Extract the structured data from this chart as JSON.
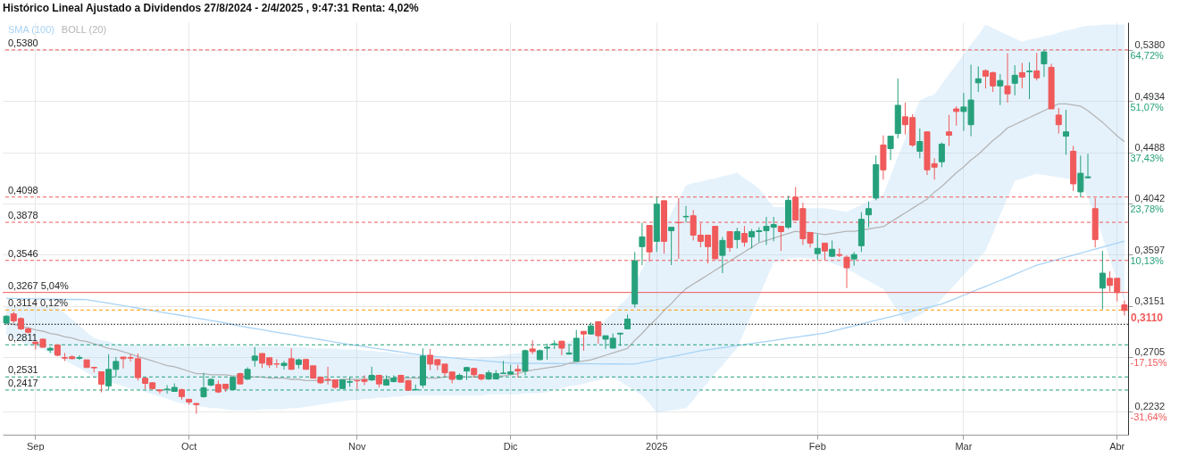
{
  "chart_data": {
    "type": "candlestick",
    "title": "Histórico Lineal Ajustado a Dividendos 27/8/2024 - 2/4/2025 , 9:47:31 Renta: 4,02%",
    "categories": [
      null,
      null,
      null,
      null,
      "Sep",
      null,
      null,
      null,
      null,
      null,
      null,
      null,
      null,
      null,
      null,
      null,
      null,
      null,
      null,
      null,
      null,
      null,
      null,
      null,
      null,
      "Oct",
      null,
      null,
      null,
      null,
      null,
      null,
      null,
      null,
      null,
      null,
      null,
      null,
      null,
      null,
      null,
      null,
      null,
      null,
      null,
      null,
      null,
      null,
      "Nov",
      null,
      null,
      null,
      null,
      null,
      null,
      null,
      null,
      null,
      null,
      null,
      null,
      null,
      null,
      null,
      null,
      null,
      null,
      null,
      null,
      "Dic",
      null,
      null,
      null,
      null,
      null,
      null,
      null,
      null,
      null,
      null,
      null,
      null,
      null,
      null,
      null,
      null,
      null,
      null,
      null,
      "2025",
      null,
      null,
      null,
      null,
      null,
      null,
      null,
      null,
      null,
      null,
      null,
      null,
      null,
      null,
      null,
      null,
      null,
      null,
      null,
      null,
      null,
      "Feb",
      null,
      null,
      null,
      null,
      null,
      null,
      null,
      null,
      null,
      null,
      null,
      null,
      null,
      null,
      null,
      null,
      null,
      null,
      null,
      "Mar",
      null,
      null,
      null,
      null,
      null,
      null,
      null,
      null,
      null,
      null,
      null,
      null,
      null,
      null,
      null,
      null,
      null,
      null,
      null,
      null,
      "Abr",
      null
    ],
    "ohlc": [
      [
        0.3,
        0.307,
        0.299,
        0.306
      ],
      [
        0.308,
        0.31,
        0.3,
        0.302
      ],
      [
        0.304,
        0.305,
        0.294,
        0.295
      ],
      [
        0.295,
        0.296,
        0.291,
        0.292
      ],
      [
        0.2835,
        0.284,
        0.277,
        0.282
      ],
      [
        0.286,
        0.2865,
        0.2786,
        0.279
      ],
      [
        0.2765,
        0.2795,
        0.274,
        0.278
      ],
      [
        0.281,
        0.281,
        0.271,
        0.272
      ],
      [
        0.27,
        0.274,
        0.267,
        0.2695
      ],
      [
        0.2706,
        0.272,
        0.2685,
        0.269
      ],
      [
        0.2693,
        0.272,
        0.268,
        0.27
      ],
      [
        0.268,
        0.268,
        0.2613,
        0.2613
      ],
      [
        0.2615,
        0.262,
        0.257,
        0.261
      ],
      [
        0.2576,
        0.2576,
        0.2397,
        0.2468
      ],
      [
        0.2453,
        0.2728,
        0.242,
        0.2597
      ],
      [
        0.2597,
        0.2705,
        0.2528,
        0.2666
      ],
      [
        0.2704,
        0.2705,
        0.2605,
        0.269
      ],
      [
        0.27,
        0.2728,
        0.2665,
        0.2695
      ],
      [
        0.269,
        0.2735,
        0.25,
        0.2525
      ],
      [
        0.252,
        0.2525,
        0.2425,
        0.2475
      ],
      [
        0.248,
        0.2485,
        0.242,
        0.243
      ],
      [
        0.2418,
        0.242,
        0.2385,
        0.241
      ],
      [
        0.242,
        0.246,
        0.2385,
        0.2425
      ],
      [
        0.2405,
        0.2475,
        0.2405,
        0.244
      ],
      [
        0.242,
        0.243,
        0.2333,
        0.236
      ],
      [
        0.2336,
        0.234,
        0.229,
        0.2313
      ],
      [
        0.23,
        0.2303,
        0.221,
        0.229
      ],
      [
        0.2359,
        0.2566,
        0.2351,
        0.2436
      ],
      [
        0.246,
        0.252,
        0.245,
        0.251
      ],
      [
        0.2465,
        0.25,
        0.239,
        0.24
      ],
      [
        0.2468,
        0.247,
        0.24,
        0.243
      ],
      [
        0.242,
        0.2528,
        0.2415,
        0.2528
      ],
      [
        0.256,
        0.2568,
        0.2465,
        0.247
      ],
      [
        0.2512,
        0.2615,
        0.2505,
        0.2597
      ],
      [
        0.2675,
        0.279,
        0.262,
        0.2713
      ],
      [
        0.2735,
        0.2735,
        0.261,
        0.2651
      ],
      [
        0.2698,
        0.2698,
        0.261,
        0.2636
      ],
      [
        0.2645,
        0.2685,
        0.261,
        0.2643
      ],
      [
        0.263,
        0.267,
        0.2595,
        0.265
      ],
      [
        0.269,
        0.278,
        0.2597,
        0.2597
      ],
      [
        0.264,
        0.269,
        0.2605,
        0.268
      ],
      [
        0.2683,
        0.269,
        0.2597,
        0.2597
      ],
      [
        0.2628,
        0.2628,
        0.252,
        0.252
      ],
      [
        0.2528,
        0.253,
        0.247,
        0.248
      ],
      [
        0.251,
        0.262,
        0.2465,
        0.2505
      ],
      [
        0.2505,
        0.2505,
        0.2428,
        0.244
      ],
      [
        0.243,
        0.2505,
        0.243,
        0.2505
      ],
      [
        0.2485,
        0.253,
        0.2445,
        0.249
      ],
      [
        0.25,
        0.2502,
        0.2425,
        0.2497
      ],
      [
        0.2508,
        0.2545,
        0.246,
        0.2492
      ],
      [
        0.2505,
        0.262,
        0.2495,
        0.2545
      ],
      [
        0.2545,
        0.255,
        0.244,
        0.247
      ],
      [
        0.246,
        0.2545,
        0.2455,
        0.2505
      ],
      [
        0.249,
        0.2545,
        0.2485,
        0.252
      ],
      [
        0.2545,
        0.255,
        0.2485,
        0.2485
      ],
      [
        0.25,
        0.25,
        0.2415,
        0.2415
      ],
      [
        0.2418,
        0.2465,
        0.2415,
        0.2422
      ],
      [
        0.246,
        0.278,
        0.2435,
        0.2713
      ],
      [
        0.272,
        0.2775,
        0.259,
        0.2643
      ],
      [
        0.2682,
        0.2682,
        0.259,
        0.2636
      ],
      [
        0.2643,
        0.2643,
        0.2535,
        0.2567
      ],
      [
        0.2574,
        0.2574,
        0.2475,
        0.251
      ],
      [
        0.251,
        0.2562,
        0.2505,
        0.2545
      ],
      [
        0.2582,
        0.262,
        0.2505,
        0.2613
      ],
      [
        0.2605,
        0.261,
        0.2525,
        0.255
      ],
      [
        0.255,
        0.2555,
        0.25,
        0.2513
      ],
      [
        0.2513,
        0.259,
        0.2505,
        0.2567
      ],
      [
        0.2513,
        0.259,
        0.251,
        0.256
      ],
      [
        0.256,
        0.267,
        0.256,
        0.2565
      ],
      [
        0.2556,
        0.2637,
        0.255,
        0.2575
      ],
      [
        0.2597,
        0.2637,
        0.2525,
        0.2582
      ],
      [
        0.2582,
        0.277,
        0.2545,
        0.276
      ],
      [
        0.2775,
        0.285,
        0.273,
        0.2752
      ],
      [
        0.2682,
        0.277,
        0.2675,
        0.276
      ],
      [
        0.2782,
        0.282,
        0.2682,
        0.279
      ],
      [
        0.2813,
        0.285,
        0.2775,
        0.282
      ],
      [
        0.2843,
        0.2845,
        0.272,
        0.2782
      ],
      [
        0.273,
        0.2805,
        0.2725,
        0.274
      ],
      [
        0.2667,
        0.294,
        0.2667,
        0.2868
      ],
      [
        0.2928,
        0.293,
        0.276,
        0.2905
      ],
      [
        0.2905,
        0.3005,
        0.29,
        0.2975
      ],
      [
        0.3012,
        0.3012,
        0.282,
        0.289
      ],
      [
        0.286,
        0.289,
        0.2775,
        0.289
      ],
      [
        0.2782,
        0.291,
        0.2782,
        0.2868
      ],
      [
        0.2905,
        0.2915,
        0.28,
        0.2912
      ],
      [
        0.295,
        0.3075,
        0.2945,
        0.3035
      ],
      [
        0.3166,
        0.362,
        0.3135,
        0.3543
      ],
      [
        0.3666,
        0.3874,
        0.3505,
        0.3751
      ],
      [
        0.3851,
        0.3851,
        0.3535,
        0.362
      ],
      [
        0.3712,
        0.41,
        0.362,
        0.4036
      ],
      [
        0.4066,
        0.4066,
        0.3605,
        0.3712
      ],
      [
        0.3805,
        0.3835,
        0.3505,
        0.3835
      ],
      [
        0.3876,
        0.409,
        0.356,
        0.3874
      ],
      [
        0.3925,
        0.402,
        0.3875,
        0.393
      ],
      [
        0.3935,
        0.3985,
        0.372,
        0.3766
      ],
      [
        0.3766,
        0.387,
        0.366,
        0.3712
      ],
      [
        0.3766,
        0.3766,
        0.352,
        0.3666
      ],
      [
        0.3843,
        0.3843,
        0.356,
        0.356
      ],
      [
        0.359,
        0.375,
        0.3435,
        0.372
      ],
      [
        0.3797,
        0.3797,
        0.362,
        0.3658
      ],
      [
        0.3728,
        0.383,
        0.365,
        0.3797
      ],
      [
        0.3781,
        0.3846,
        0.3666,
        0.3705
      ],
      [
        0.3751,
        0.382,
        0.365,
        0.3797
      ],
      [
        0.3797,
        0.3835,
        0.3705,
        0.3805
      ],
      [
        0.3805,
        0.3925,
        0.368,
        0.3843
      ],
      [
        0.3835,
        0.3925,
        0.3712,
        0.3858
      ],
      [
        0.3843,
        0.3843,
        0.3628,
        0.3797
      ],
      [
        0.3835,
        0.4108,
        0.382,
        0.407
      ],
      [
        0.4097,
        0.4185,
        0.3897,
        0.3897
      ],
      [
        0.3997,
        0.4048,
        0.368,
        0.3735
      ],
      [
        0.3789,
        0.3789,
        0.3658,
        0.3697
      ],
      [
        0.3605,
        0.3774,
        0.3548,
        0.3651
      ],
      [
        0.3697,
        0.3697,
        0.3551,
        0.3628
      ],
      [
        0.3582,
        0.372,
        0.3575,
        0.3643
      ],
      [
        0.3597,
        0.3651,
        0.3575,
        0.359
      ],
      [
        0.3574,
        0.359,
        0.3305,
        0.3482
      ],
      [
        0.3559,
        0.362,
        0.35,
        0.3597
      ],
      [
        0.3674,
        0.3966,
        0.362,
        0.3904
      ],
      [
        0.3943,
        0.4058,
        0.3835,
        0.3997
      ],
      [
        0.4089,
        0.446,
        0.407,
        0.438
      ],
      [
        0.4551,
        0.4635,
        0.425,
        0.4335
      ],
      [
        0.452,
        0.4628,
        0.442,
        0.4628
      ],
      [
        0.4651,
        0.513,
        0.461,
        0.4897
      ],
      [
        0.4797,
        0.492,
        0.4643,
        0.4728
      ],
      [
        0.479,
        0.482,
        0.4535,
        0.4551
      ],
      [
        0.4497,
        0.4695,
        0.4435,
        0.4582
      ],
      [
        0.4666,
        0.4666,
        0.429,
        0.4335
      ],
      [
        0.4389,
        0.4435,
        0.425,
        0.4358
      ],
      [
        0.4405,
        0.4574,
        0.4358,
        0.4559
      ],
      [
        0.4666,
        0.4813,
        0.4543,
        0.4636
      ],
      [
        0.4866,
        0.4889,
        0.472,
        0.4843
      ],
      [
        0.4843,
        0.5005,
        0.4674,
        0.4882
      ],
      [
        0.4728,
        0.5251,
        0.4628,
        0.4943
      ],
      [
        0.5093,
        0.5236,
        0.5013,
        0.5128
      ],
      [
        0.5199,
        0.521,
        0.5043,
        0.5151
      ],
      [
        0.5182,
        0.519,
        0.5013,
        0.5066
      ],
      [
        0.5066,
        0.5169,
        0.4899,
        0.5113
      ],
      [
        0.5066,
        0.5351,
        0.492,
        0.4997
      ],
      [
        0.5089,
        0.5246,
        0.4984,
        0.5159
      ],
      [
        0.5182,
        0.5266,
        0.5045,
        0.5143
      ],
      [
        0.519,
        0.5272,
        0.4951,
        0.5195
      ],
      [
        0.5197,
        0.5353,
        0.5113,
        0.5136
      ],
      [
        0.5258,
        0.538,
        0.5143,
        0.5362
      ],
      [
        0.5228,
        0.5259,
        0.4866,
        0.4866
      ],
      [
        0.4812,
        0.4874,
        0.4651,
        0.4728
      ],
      [
        0.4628,
        0.4859,
        0.4466,
        0.4666
      ],
      [
        0.4497,
        0.4543,
        0.4151,
        0.4213
      ],
      [
        0.4143,
        0.4459,
        0.4097,
        0.4305
      ],
      [
        0.4266,
        0.4474,
        0.4259,
        0.4274
      ],
      [
        0.3997,
        0.4089,
        0.3659,
        0.3728
      ],
      [
        0.3305,
        0.3628,
        0.312,
        0.3435
      ],
      [
        0.339,
        0.3451,
        0.3274,
        0.3328
      ],
      [
        0.339,
        0.339,
        0.3189,
        0.3266
      ],
      [
        0.3159,
        0.3197,
        0.3066,
        0.311
      ]
    ],
    "colors": [
      "#26a17b",
      "#f05a5a",
      "#f05a5a",
      "#f05a5a",
      "#f05a5a",
      "#f05a5a",
      "#26a17b",
      "#f05a5a",
      "#f05a5a",
      "#f05a5a",
      "#26a17b",
      "#f05a5a",
      "#f05a5a",
      "#f05a5a",
      "#26a17b",
      "#26a17b",
      "#f05a5a",
      "#f05a5a",
      "#f05a5a",
      "#f05a5a",
      "#f05a5a",
      "#f05a5a",
      "#26a17b",
      "#26a17b",
      "#f05a5a",
      "#f05a5a",
      "#f05a5a",
      "#26a17b",
      "#26a17b",
      "#f05a5a",
      "#f05a5a",
      "#26a17b",
      "#f05a5a",
      "#26a17b",
      "#26a17b",
      "#f05a5a",
      "#f05a5a",
      "#f05a5a",
      "#26a17b",
      "#f05a5a",
      "#26a17b",
      "#f05a5a",
      "#f05a5a",
      "#f05a5a",
      "#f05a5a",
      "#f05a5a",
      "#26a17b",
      "#26a17b",
      "#f05a5a",
      "#f05a5a",
      "#26a17b",
      "#f05a5a",
      "#26a17b",
      "#26a17b",
      "#f05a5a",
      "#f05a5a",
      "#26a17b",
      "#26a17b",
      "#f05a5a",
      "#f05a5a",
      "#f05a5a",
      "#f05a5a",
      "#26a17b",
      "#26a17b",
      "#f05a5a",
      "#f05a5a",
      "#26a17b",
      "#26a17b",
      "#26a17b",
      "#26a17b",
      "#f05a5a",
      "#26a17b",
      "#f05a5a",
      "#26a17b",
      "#26a17b",
      "#26a17b",
      "#f05a5a",
      "#26a17b",
      "#26a17b",
      "#f05a5a",
      "#26a17b",
      "#f05a5a",
      "#26a17b",
      "#26a17b",
      "#26a17b",
      "#26a17b",
      "#26a17b",
      "#26a17b",
      "#f05a5a",
      "#26a17b",
      "#f05a5a",
      "#26a17b",
      "#f05a5a",
      "#26a17b",
      "#f05a5a",
      "#f05a5a",
      "#f05a5a",
      "#f05a5a",
      "#26a17b",
      "#f05a5a",
      "#26a17b",
      "#f05a5a",
      "#26a17b",
      "#26a17b",
      "#26a17b",
      "#26a17b",
      "#f05a5a",
      "#26a17b",
      "#f05a5a",
      "#f05a5a",
      "#f05a5a",
      "#26a17b",
      "#f05a5a",
      "#26a17b",
      "#f05a5a",
      "#f05a5a",
      "#26a17b",
      "#26a17b",
      "#26a17b",
      "#26a17b",
      "#f05a5a",
      "#26a17b",
      "#26a17b",
      "#f05a5a",
      "#f05a5a",
      "#26a17b",
      "#f05a5a",
      "#f05a5a",
      "#26a17b",
      "#f05a5a",
      "#f05a5a",
      "#26a17b",
      "#26a17b",
      "#26a17b",
      "#f05a5a",
      "#f05a5a",
      "#26a17b",
      "#f05a5a",
      "#26a17b",
      "#f05a5a",
      "#26a17b",
      "#f05a5a",
      "#26a17b",
      "#f05a5a",
      "#f05a5a",
      "#26a17b",
      "#f05a5a",
      "#26a17b",
      "#26a17b",
      "#f05a5a",
      "#26a17b",
      "#f05a5a",
      "#f05a5a",
      "#f05a5a"
    ],
    "series": [
      {
        "type": "line",
        "name": "SMA (100)",
        "color": "#a8d3f5",
        "values": [
          0.3215,
          0.3214,
          0.3213,
          0.3212,
          0.3211,
          0.321,
          0.3209,
          0.3208,
          0.3207,
          0.3206,
          0.3206,
          0.3205,
          0.3194,
          0.3184,
          0.3173,
          0.3162,
          0.3152,
          0.3141,
          0.313,
          0.312,
          0.3109,
          0.3098,
          0.3087,
          0.3077,
          0.3066,
          0.3055,
          0.3044,
          0.3034,
          0.3023,
          0.3012,
          0.3,
          0.2987,
          0.2974,
          0.2963,
          0.2952,
          0.2942,
          0.2931,
          0.292,
          0.291,
          0.2899,
          0.2888,
          0.2877,
          0.2867,
          0.2856,
          0.2845,
          0.2834,
          0.2824,
          0.2813,
          0.2804,
          0.2795,
          0.2785,
          0.2776,
          0.2767,
          0.2757,
          0.2748,
          0.2739,
          0.2729,
          0.272,
          0.2714,
          0.2708,
          0.2703,
          0.2697,
          0.2691,
          0.2685,
          0.268,
          0.2674,
          0.2668,
          0.2662,
          0.2657,
          0.2651,
          0.265,
          0.265,
          0.2649,
          0.2649,
          0.2648,
          0.2648,
          0.2647,
          0.2647,
          0.2646,
          0.2646,
          0.2645,
          0.2645,
          0.2644,
          0.2644,
          0.2644,
          0.2643,
          0.2643,
          0.2656,
          0.2669,
          0.2682,
          0.2695,
          0.2707,
          0.272,
          0.2733,
          0.2746,
          0.2759,
          0.2768,
          0.2777,
          0.2786,
          0.2795,
          0.2804,
          0.2813,
          0.2822,
          0.2831,
          0.284,
          0.285,
          0.2859,
          0.2868,
          0.2877,
          0.2886,
          0.2895,
          0.2904,
          0.2913,
          0.2929,
          0.2945,
          0.2961,
          0.2976,
          0.2992,
          0.3008,
          0.3024,
          0.304,
          0.3055,
          0.3071,
          0.3087,
          0.3103,
          0.3119,
          0.3134,
          0.315,
          0.3166,
          0.3192,
          0.3217,
          0.3243,
          0.3269,
          0.3294,
          0.332,
          0.3346,
          0.3371,
          0.3397,
          0.3424,
          0.3451,
          0.3478,
          0.3505,
          0.3522,
          0.354,
          0.3557,
          0.3575,
          0.3592,
          0.361,
          0.3627,
          0.3645,
          0.3662,
          0.368,
          0.3697,
          0.3715
        ]
      },
      {
        "type": "line",
        "name": "BOLL (20)",
        "color": "#b5b5b5",
        "values": [
          0.3,
          0.299,
          0.297,
          0.296,
          0.294,
          0.293,
          0.291,
          0.29,
          0.288,
          0.287,
          0.285,
          0.284,
          0.282,
          0.28,
          0.278,
          0.277,
          0.275,
          0.273,
          0.271,
          0.269,
          0.267,
          0.265,
          0.263,
          0.262,
          0.26,
          0.258,
          0.256,
          0.256,
          0.255,
          0.255,
          0.255,
          0.254,
          0.254,
          0.253,
          0.253,
          0.253,
          0.252,
          0.252,
          0.252,
          0.251,
          0.251,
          0.25,
          0.25,
          0.25,
          0.25,
          0.25,
          0.251,
          0.251,
          0.251,
          0.251,
          0.251,
          0.251,
          0.251,
          0.252,
          0.252,
          0.252,
          0.252,
          0.252,
          0.252,
          0.252,
          0.253,
          0.253,
          0.253,
          0.253,
          0.253,
          0.253,
          0.254,
          0.254,
          0.254,
          0.255,
          0.256,
          0.258,
          0.259,
          0.26,
          0.261,
          0.262,
          0.263,
          0.265,
          0.266,
          0.267,
          0.268,
          0.27,
          0.272,
          0.274,
          0.276,
          0.278,
          0.285,
          0.291,
          0.298,
          0.304,
          0.311,
          0.317,
          0.324,
          0.33,
          0.334,
          0.338,
          0.342,
          0.346,
          0.35,
          0.354,
          0.358,
          0.362,
          0.366,
          0.37,
          0.372,
          0.374,
          0.376,
          0.378,
          0.38,
          0.379,
          0.379,
          0.378,
          0.377,
          0.378,
          0.379,
          0.38,
          0.38,
          0.381,
          0.382,
          0.383,
          0.384,
          0.388,
          0.392,
          0.396,
          0.4,
          0.404,
          0.408,
          0.414,
          0.419,
          0.425,
          0.431,
          0.436,
          0.442,
          0.447,
          0.453,
          0.459,
          0.464,
          0.47,
          0.473,
          0.476,
          0.479,
          0.482,
          0.485,
          0.488,
          0.491,
          0.491,
          0.49,
          0.489,
          0.485,
          0.48,
          0.475,
          0.469,
          0.463,
          0.458
        ],
        "lower": [
          0.29,
          0.287,
          0.284,
          0.281,
          0.279,
          0.277,
          0.274,
          0.272,
          0.268,
          0.264,
          0.261,
          0.257,
          0.253,
          0.251,
          0.249,
          0.247,
          0.245,
          0.243,
          0.242,
          0.24,
          0.238,
          0.236,
          0.234,
          0.232,
          0.23,
          0.229,
          0.228,
          0.227,
          0.226,
          0.226,
          0.225,
          0.224,
          0.224,
          0.224,
          0.224,
          0.225,
          0.225,
          0.225,
          0.225,
          0.226,
          0.226,
          0.227,
          0.228,
          0.229,
          0.23,
          0.231,
          0.232,
          0.233,
          0.233,
          0.234,
          0.234,
          0.235,
          0.235,
          0.236,
          0.236,
          0.237,
          0.237,
          0.237,
          0.237,
          0.237,
          0.237,
          0.237,
          0.237,
          0.237,
          0.237,
          0.237,
          0.238,
          0.238,
          0.238,
          0.238,
          0.238,
          0.239,
          0.239,
          0.239,
          0.24,
          0.242,
          0.243,
          0.245,
          0.246,
          0.247,
          0.249,
          0.25,
          0.252,
          0.253,
          0.249,
          0.245,
          0.241,
          0.237,
          0.23,
          0.222,
          0.223,
          0.224,
          0.225,
          0.226,
          0.233,
          0.241,
          0.248,
          0.256,
          0.263,
          0.271,
          0.278,
          0.293,
          0.308,
          0.323,
          0.338,
          0.353,
          0.354,
          0.356,
          0.357,
          0.357,
          0.356,
          0.356,
          0.355,
          0.352,
          0.35,
          0.347,
          0.344,
          0.34,
          0.337,
          0.333,
          0.33,
          0.32,
          0.31,
          0.3,
          0.304,
          0.307,
          0.311,
          0.314,
          0.321,
          0.328,
          0.335,
          0.342,
          0.349,
          0.356,
          0.363,
          0.378,
          0.394,
          0.409,
          0.424,
          0.426,
          0.428,
          0.43,
          0.429,
          0.428,
          0.427,
          0.426,
          0.425,
          0.424,
          0.409,
          0.394,
          0.375,
          0.356,
          0.337,
          0.318
        ],
        "upper": [
          0.314,
          0.314,
          0.314,
          0.314,
          0.314,
          0.314,
          0.314,
          0.314,
          0.309,
          0.303,
          0.298,
          0.292,
          0.287,
          0.285,
          0.284,
          0.282,
          0.281,
          0.281,
          0.281,
          0.281,
          0.281,
          0.281,
          0.281,
          0.28,
          0.28,
          0.28,
          0.28,
          0.28,
          0.28,
          0.28,
          0.28,
          0.28,
          0.28,
          0.28,
          0.28,
          0.28,
          0.28,
          0.28,
          0.28,
          0.279,
          0.279,
          0.279,
          0.278,
          0.278,
          0.278,
          0.278,
          0.277,
          0.277,
          0.277,
          0.276,
          0.276,
          0.275,
          0.275,
          0.274,
          0.273,
          0.273,
          0.272,
          0.271,
          0.271,
          0.27,
          0.27,
          0.269,
          0.269,
          0.268,
          0.269,
          0.27,
          0.27,
          0.271,
          0.272,
          0.273,
          0.274,
          0.274,
          0.275,
          0.276,
          0.278,
          0.28,
          0.282,
          0.284,
          0.286,
          0.288,
          0.29,
          0.296,
          0.303,
          0.309,
          0.316,
          0.322,
          0.334,
          0.347,
          0.359,
          0.371,
          0.383,
          0.396,
          0.408,
          0.42,
          0.422,
          0.423,
          0.425,
          0.426,
          0.428,
          0.429,
          0.431,
          0.426,
          0.422,
          0.417,
          0.409,
          0.401,
          0.401,
          0.401,
          0.4,
          0.4,
          0.4,
          0.4,
          0.4,
          0.399,
          0.398,
          0.397,
          0.4,
          0.403,
          0.406,
          0.409,
          0.412,
          0.428,
          0.445,
          0.461,
          0.478,
          0.494,
          0.497,
          0.499,
          0.508,
          0.517,
          0.525,
          0.534,
          0.543,
          0.551,
          0.56,
          0.557,
          0.554,
          0.551,
          0.548,
          0.545,
          0.547,
          0.548,
          0.55,
          0.551,
          0.553,
          0.555,
          0.556,
          0.558,
          0.559,
          0.559,
          0.56,
          0.56,
          0.56,
          0.56
        ]
      }
    ],
    "ylim": [
      0.2028,
      0.562
    ],
    "yticks": [
      {
        "value": 0.538,
        "label": "0,5380"
      },
      {
        "value": 0.4934,
        "label": "0,4934"
      },
      {
        "value": 0.4488,
        "label": "0,4488"
      },
      {
        "value": 0.4042,
        "label": "0,4042"
      },
      {
        "value": 0.3597,
        "label": "0,3597"
      },
      {
        "value": 0.3151,
        "label": "0,3151"
      },
      {
        "value": 0.2705,
        "label": "0,2705"
      },
      {
        "value": 0.2232,
        "label": "0,2232"
      }
    ],
    "y2lim": [
      -37.91,
      72.07
    ],
    "y2ticks": [
      {
        "value": 64.72,
        "label": "64,72%"
      },
      {
        "value": 51.07,
        "label": "51,07%"
      },
      {
        "value": 37.43,
        "label": "37,43%"
      },
      {
        "value": 23.78,
        "label": "23,78%"
      },
      {
        "value": 10.13,
        "label": "10,13%"
      },
      {
        "value": -17.15,
        "label": "-17,15%"
      },
      {
        "value": -31.64,
        "label": "-31,64%"
      }
    ],
    "ref_lines": [
      {
        "axis": "y",
        "value": 0.538,
        "label": "0,5380",
        "color": "#f05a5a",
        "line_style": "dashed"
      },
      {
        "axis": "y",
        "value": 0.4098,
        "label": "0,4098",
        "color": "#f05a5a",
        "line_style": "dashed"
      },
      {
        "axis": "y",
        "value": 0.3878,
        "label": "0,3878",
        "color": "#f05a5a",
        "line_style": "dashed"
      },
      {
        "axis": "y",
        "value": 0.3546,
        "label": "0,3546",
        "color": "#f05a5a",
        "line_style": "dashed"
      },
      {
        "axis": "y",
        "value": 0.3267,
        "label": "0,3267  5,04%",
        "color": "#f05a5a",
        "line_style": "solid"
      },
      {
        "axis": "y",
        "value": 0.3114,
        "label": "0,3114  0,12%",
        "color": "#ff9800",
        "line_style": "dashed"
      },
      {
        "axis": "y",
        "value": 0.299,
        "color": "#000000",
        "line_style": "dotted"
      },
      {
        "axis": "y",
        "value": 0.2811,
        "label": "0,2811",
        "color": "#26a17b",
        "line_style": "dashed"
      },
      {
        "axis": "y",
        "value": 0.2531,
        "label": "0,2531",
        "color": "#26a17b",
        "line_style": "dashed"
      },
      {
        "axis": "y",
        "value": 0.2417,
        "label": "0,2417",
        "color": "#26a17b",
        "line_style": "dashed"
      }
    ],
    "annotations": [
      "0,3110"
    ],
    "grid": true,
    "legend": "top left"
  }
}
